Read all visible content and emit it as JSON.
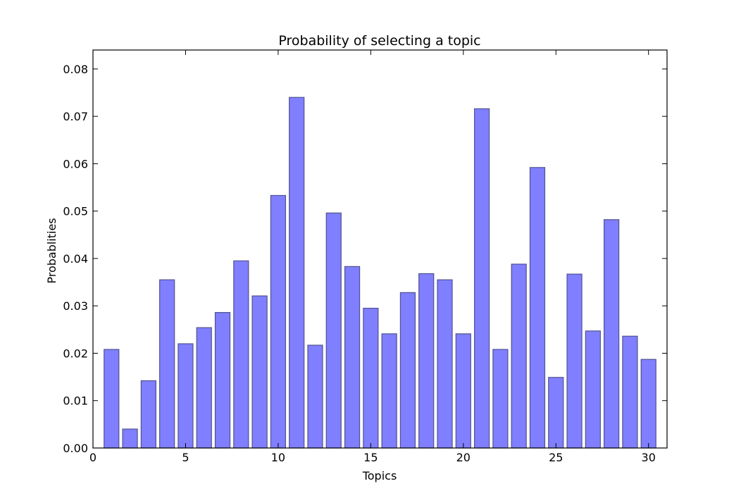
{
  "chart_data": {
    "type": "bar",
    "title": "Probability of selecting a topic",
    "xlabel": "Topics",
    "ylabel": "Probablities",
    "x": [
      1,
      2,
      3,
      4,
      5,
      6,
      7,
      8,
      9,
      10,
      11,
      12,
      13,
      14,
      15,
      16,
      17,
      18,
      19,
      20,
      21,
      22,
      23,
      24,
      25,
      26,
      27,
      28,
      29,
      30
    ],
    "values": [
      0.0208,
      0.004,
      0.0142,
      0.0355,
      0.022,
      0.0254,
      0.0286,
      0.0395,
      0.0321,
      0.0533,
      0.074,
      0.0217,
      0.0496,
      0.0383,
      0.0295,
      0.0241,
      0.0328,
      0.0368,
      0.0355,
      0.0241,
      0.0716,
      0.0208,
      0.0388,
      0.0592,
      0.0149,
      0.0367,
      0.0247,
      0.0482,
      0.0236,
      0.0187
    ],
    "xlim": [
      0,
      31
    ],
    "ylim": [
      0,
      0.084
    ],
    "xticks": [
      0,
      5,
      10,
      15,
      20,
      25,
      30
    ],
    "xtick_labels": [
      "0",
      "5",
      "10",
      "15",
      "20",
      "25",
      "30"
    ],
    "yticks": [
      0,
      0.01,
      0.02,
      0.03,
      0.04,
      0.05,
      0.06,
      0.07,
      0.08
    ],
    "ytick_labels": [
      "0.00",
      "0.01",
      "0.02",
      "0.03",
      "0.04",
      "0.05",
      "0.06",
      "0.07",
      "0.08"
    ],
    "bar_width": 0.8,
    "grid": false,
    "colors": {
      "bar_fill": "#7f7fff",
      "bar_edge": "#52528f"
    }
  }
}
